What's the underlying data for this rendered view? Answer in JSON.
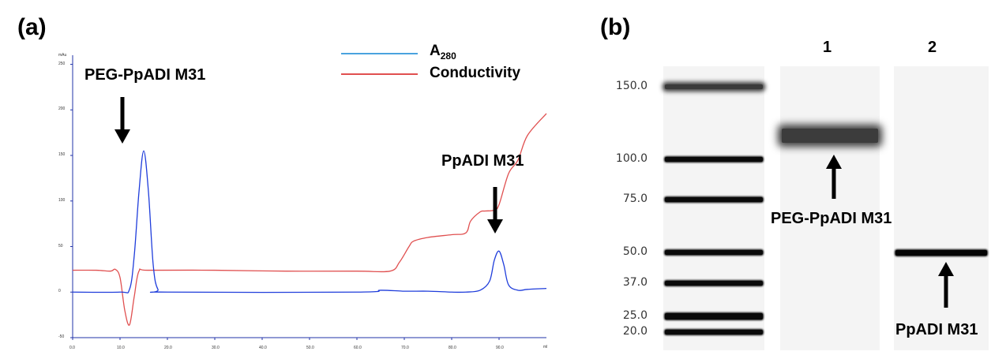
{
  "panels": {
    "a": "(a)",
    "b": "(b)"
  },
  "chart_data": [
    {
      "type": "line",
      "xlim": [
        0,
        100
      ],
      "ylim": [
        -50,
        260
      ],
      "y_unit": "mAu",
      "x_unit": "ml",
      "x_ticks": [
        "0.0",
        "10.0",
        "20.0",
        "30.0",
        "40.0",
        "50.0",
        "60.0",
        "70.0",
        "80.0",
        "90.0"
      ],
      "y_ticks": [
        "-50",
        "0",
        "50",
        "100",
        "150",
        "200",
        "250"
      ],
      "grid": false,
      "legend_position": "top-right",
      "series": [
        {
          "name": "A280",
          "color": "#1f3ddb",
          "x": [
            0,
            10,
            12,
            13,
            14,
            15,
            16,
            17,
            18,
            20,
            60,
            65,
            70,
            75,
            80,
            83,
            86,
            88,
            89,
            90,
            91,
            92,
            94,
            96,
            100
          ],
          "y": [
            0,
            0,
            3,
            40,
            110,
            155,
            110,
            30,
            3,
            0,
            0,
            2,
            1,
            1,
            0,
            0,
            2,
            12,
            35,
            45,
            30,
            8,
            2,
            3,
            4
          ]
        },
        {
          "name": "Conductivity",
          "color": "#e05050",
          "x": [
            0,
            5,
            8,
            9,
            10,
            11,
            12,
            13,
            14,
            16,
            30,
            45,
            60,
            67,
            69,
            71,
            72,
            75,
            80,
            83,
            84,
            86,
            87,
            89,
            90,
            92,
            94,
            96,
            100
          ],
          "y": [
            24,
            24,
            23,
            25,
            16,
            -20,
            -36,
            -5,
            23,
            24,
            24,
            23,
            23,
            23,
            33,
            50,
            56,
            60,
            63,
            65,
            78,
            88,
            89,
            90,
            96,
            130,
            145,
            172,
            196
          ]
        }
      ],
      "annotations": [
        "PEG-PpADI M31",
        "PpADI M31"
      ]
    },
    {
      "type": "gel",
      "ladder_labels": [
        "150.0",
        "100.0",
        "75.0",
        "50.0",
        "37.0",
        "25.0",
        "20.0"
      ],
      "ladder_values": [
        150,
        100,
        75,
        50,
        37,
        25,
        20
      ],
      "lanes": [
        {
          "label": "1",
          "bands_kDa": [
            115
          ],
          "annotation": "PEG-PpADI M31"
        },
        {
          "label": "2",
          "bands_kDa": [
            50
          ],
          "annotation": "PpADI M31"
        }
      ]
    }
  ],
  "legend": {
    "a280_main": "A",
    "a280_sub": "280",
    "conductivity": "Conductivity"
  }
}
